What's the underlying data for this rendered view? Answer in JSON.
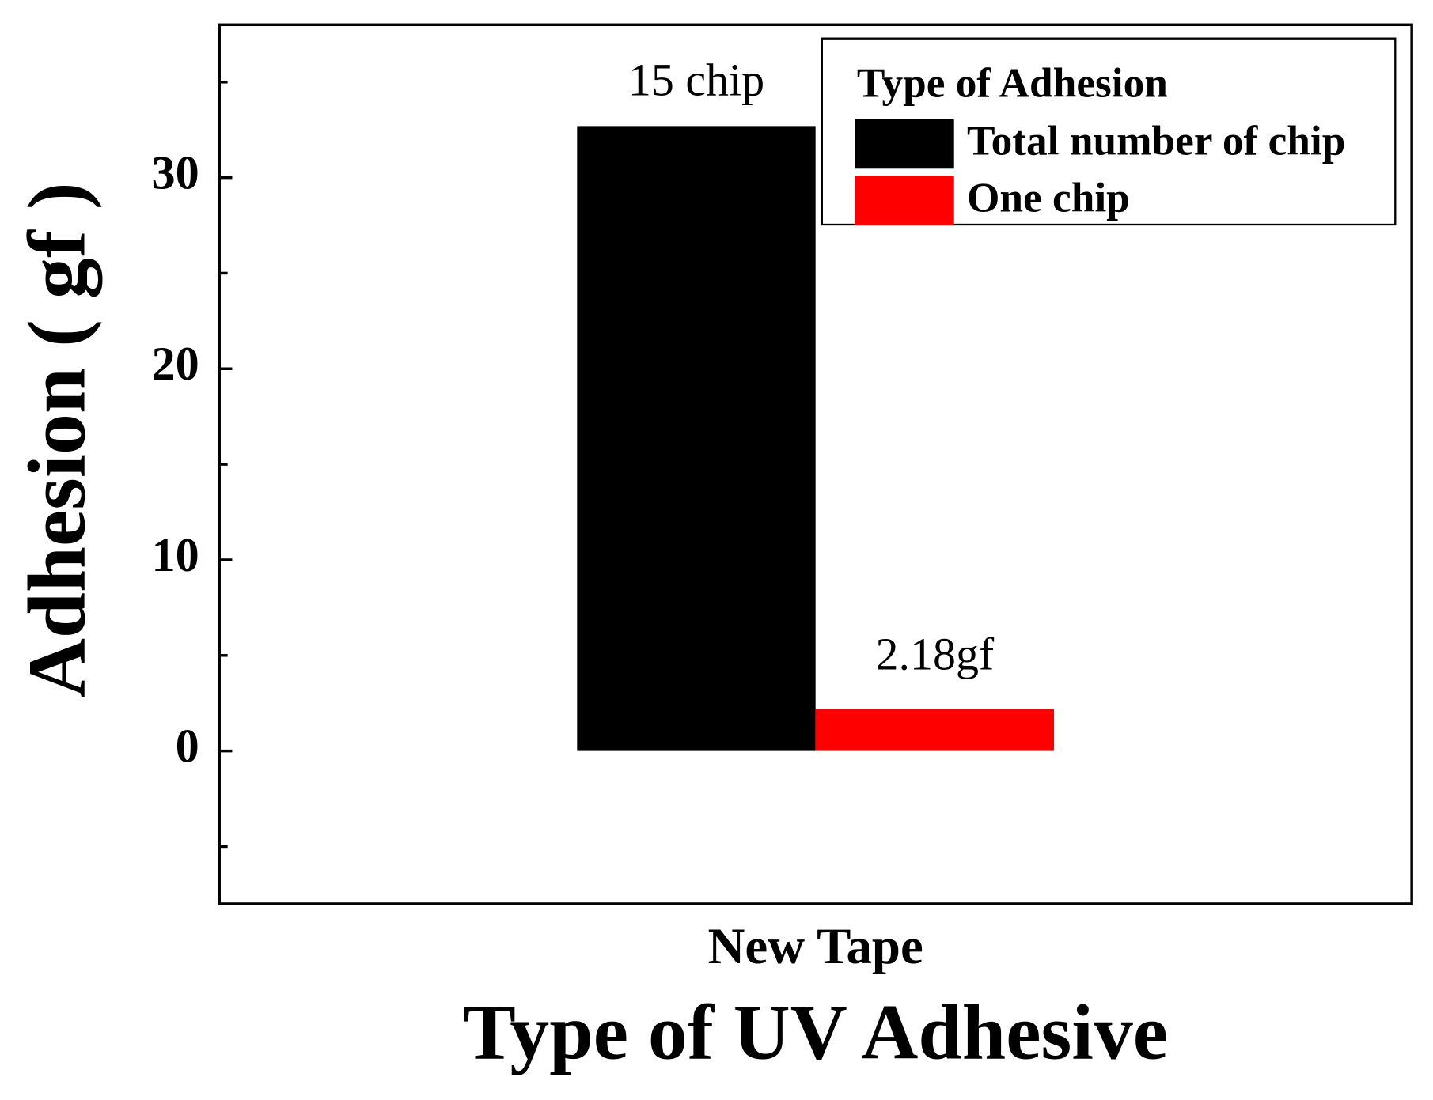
{
  "chart_data": {
    "type": "bar",
    "x_label": "Type of UV Adhesive",
    "y_label": "Adhesion ( gf )",
    "categories": [
      "New Tape"
    ],
    "series": [
      {
        "name": "Total number of chip",
        "color": "#000000",
        "values": [
          32.7
        ]
      },
      {
        "name": "One chip",
        "color": "#ff0000",
        "values": [
          2.18
        ],
        "value_labels": [
          "2.18gf"
        ]
      }
    ],
    "annotations": [
      "15 chip"
    ],
    "legend_title": "Type of Adhesion",
    "legend": "upper right",
    "ylim": [
      -8,
      38
    ],
    "yticks": [
      0,
      10,
      20,
      30
    ],
    "yminorticks": [
      -5,
      5,
      15,
      25,
      35
    ],
    "grid": false
  }
}
